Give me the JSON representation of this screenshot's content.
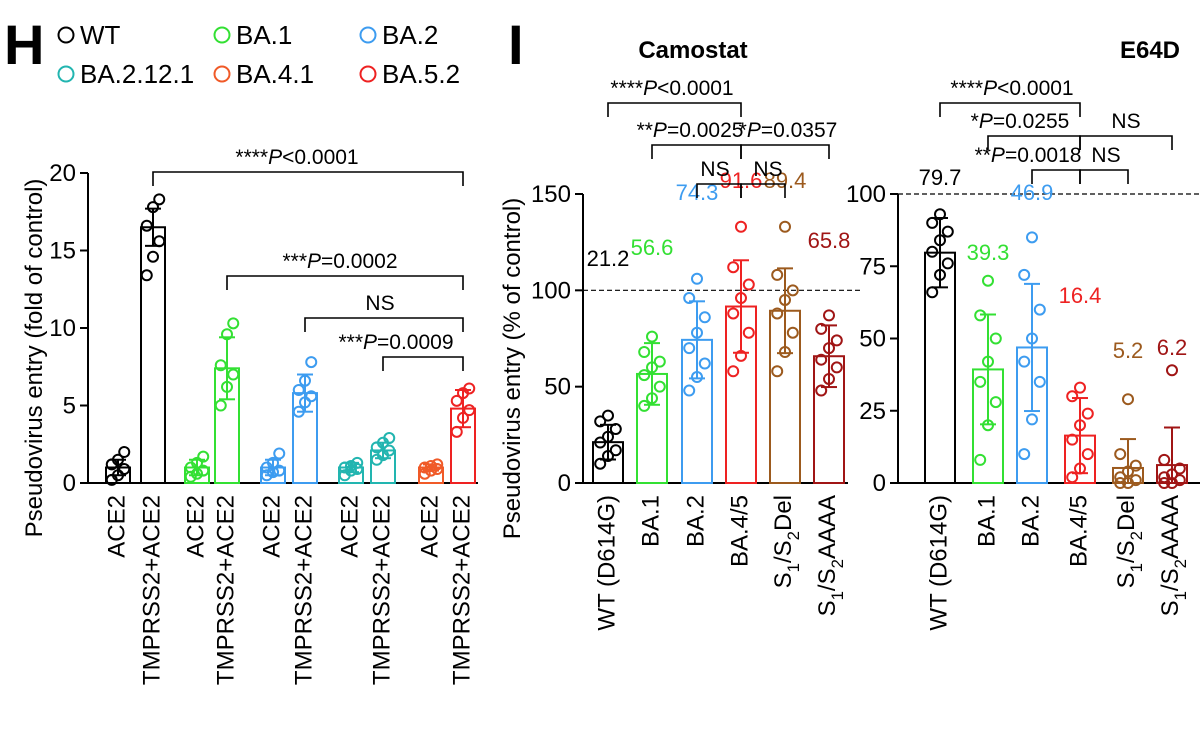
{
  "panel_labels": {
    "h": "H",
    "i": "I"
  },
  "legend": [
    {
      "label": "WT",
      "color": "#000000"
    },
    {
      "label": "BA.1",
      "color": "#33e033"
    },
    {
      "label": "BA.2",
      "color": "#3d9cf0"
    },
    {
      "label": "BA.2.12.1",
      "color": "#22b5b0"
    },
    {
      "label": "BA.4.1",
      "color": "#f05a28"
    },
    {
      "label": "BA.5.2",
      "color": "#ee2222"
    }
  ],
  "chart_data": [
    {
      "panel": "H",
      "type": "bar",
      "title": "",
      "ylabel": "Pseudovirus entry (fold of control)",
      "ylim": [
        0,
        20
      ],
      "yticks": [
        0,
        5,
        10,
        15,
        20
      ],
      "categories": [
        "ACE2",
        "TMPRSS2+ACE2",
        "ACE2",
        "TMPRSS2+ACE2",
        "ACE2",
        "TMPRSS2+ACE2",
        "ACE2",
        "TMPRSS2+ACE2",
        "ACE2",
        "TMPRSS2+ACE2"
      ],
      "variant": [
        "WT",
        "WT",
        "BA.1",
        "BA.1",
        "BA.2",
        "BA.2",
        "BA.2.12.1",
        "BA.2.12.1",
        "BA.4.1",
        "BA.5.2"
      ],
      "values": [
        1.0,
        16.5,
        1.0,
        7.4,
        1.0,
        5.8,
        1.0,
        2.1,
        1.0,
        4.8
      ],
      "errors": [
        0.5,
        1.2,
        0.5,
        2.0,
        0.5,
        1.2,
        0.3,
        0.5,
        0.2,
        1.2
      ],
      "points": [
        [
          0.2,
          0.5,
          0.9,
          1.2,
          1.5,
          2.0
        ],
        [
          13.4,
          14.6,
          15.6,
          16.6,
          17.8,
          18.3
        ],
        [
          0.4,
          0.6,
          0.8,
          1.0,
          1.3,
          1.7
        ],
        [
          5.0,
          6.2,
          7.0,
          7.6,
          9.6,
          10.3
        ],
        [
          0.5,
          0.7,
          0.8,
          1.0,
          1.3,
          1.9
        ],
        [
          4.6,
          5.2,
          5.6,
          6.0,
          6.6,
          7.8
        ],
        [
          0.5,
          0.8,
          0.9,
          1.0,
          1.1,
          1.3
        ],
        [
          1.5,
          1.8,
          2.1,
          2.3,
          2.6,
          2.9
        ],
        [
          0.6,
          0.8,
          0.9,
          1.0,
          1.1,
          1.2
        ],
        [
          3.3,
          4.2,
          4.7,
          5.3,
          5.8,
          6.1
        ]
      ],
      "significance": [
        {
          "text": "****P<0.0001",
          "from": 1,
          "to": 9
        },
        {
          "text": "***P=0.0002",
          "from": 3,
          "to": 9
        },
        {
          "text": "NS",
          "from": 5,
          "to": 9
        },
        {
          "text": "***P=0.0009",
          "from": 7,
          "to": 9
        }
      ]
    },
    {
      "panel": "I",
      "type": "bar",
      "title": "Camostat",
      "ylabel": "Pseudovirus entry (% of control)",
      "ylim": [
        0,
        150
      ],
      "yticks": [
        0,
        50,
        100,
        150
      ],
      "reference_line": 100,
      "categories": [
        "WT (D614G)",
        "BA.1",
        "BA.2",
        "BA.4/5",
        "S1/S2Del",
        "S1/S2AAAA"
      ],
      "values": [
        21.2,
        56.6,
        74.3,
        91.6,
        89.4,
        65.8
      ],
      "value_labels": [
        "21.2",
        "56.6",
        "74.3",
        "91.6",
        "89.4",
        "65.8"
      ],
      "errors": [
        9,
        16,
        20,
        24,
        22,
        16
      ],
      "colors": [
        "#000000",
        "#33e033",
        "#3d9cf0",
        "#ee2222",
        "#9c5a1e",
        "#a01515"
      ],
      "points": [
        [
          10,
          14,
          17,
          21,
          24,
          28,
          32,
          35
        ],
        [
          40,
          44,
          50,
          56,
          60,
          63,
          68,
          76
        ],
        [
          48,
          55,
          62,
          70,
          78,
          86,
          96,
          106
        ],
        [
          58,
          66,
          78,
          88,
          96,
          103,
          112,
          133
        ],
        [
          58,
          68,
          78,
          88,
          95,
          100,
          108,
          133
        ],
        [
          48,
          54,
          60,
          64,
          70,
          74,
          80,
          87
        ]
      ],
      "significance": [
        {
          "text": "****P<0.0001",
          "from": 0,
          "to": 3
        },
        {
          "text": "**P=0.0025",
          "from": 1,
          "to": 3
        },
        {
          "text": "*P=0.0357",
          "from": 3,
          "to": 5
        },
        {
          "text": "NS",
          "from": 2,
          "to": 3
        },
        {
          "text": "NS",
          "from": 3,
          "to": 4
        }
      ]
    },
    {
      "panel": "I",
      "type": "bar",
      "title": "E64D",
      "ylabel": "",
      "ylim": [
        0,
        100
      ],
      "yticks": [
        0,
        25,
        50,
        75,
        100
      ],
      "reference_line": 100,
      "categories": [
        "WT (D614G)",
        "BA.1",
        "BA.2",
        "BA.4/5",
        "S1/S2Del",
        "S1/S2AAAA"
      ],
      "values": [
        79.7,
        39.3,
        46.9,
        16.4,
        5.2,
        6.2
      ],
      "value_labels": [
        "79.7",
        "39.3",
        "46.9",
        "16.4",
        "5.2",
        "6.2"
      ],
      "errors": [
        12,
        19,
        22,
        13,
        10,
        13
      ],
      "colors": [
        "#000000",
        "#33e033",
        "#3d9cf0",
        "#ee2222",
        "#9c5a1e",
        "#a01515"
      ],
      "points": [
        [
          66,
          72,
          76,
          80,
          84,
          87,
          90,
          93
        ],
        [
          8,
          20,
          28,
          35,
          42,
          50,
          58,
          70
        ],
        [
          10,
          22,
          35,
          42,
          50,
          60,
          72,
          85
        ],
        [
          2,
          5,
          10,
          15,
          20,
          24,
          30,
          33
        ],
        [
          0,
          0,
          1,
          2,
          4,
          6,
          10,
          29
        ],
        [
          0,
          0,
          1,
          2,
          3,
          5,
          8,
          39
        ]
      ],
      "significance": [
        {
          "text": "****P<0.0001",
          "from": 0,
          "to": 3
        },
        {
          "text": "*P=0.0255",
          "from": 1,
          "to": 3
        },
        {
          "text": "NS",
          "from": 3,
          "to": 5
        },
        {
          "text": "**P=0.0018",
          "from": 2,
          "to": 3
        },
        {
          "text": "NS",
          "from": 3,
          "to": 4
        }
      ]
    }
  ]
}
